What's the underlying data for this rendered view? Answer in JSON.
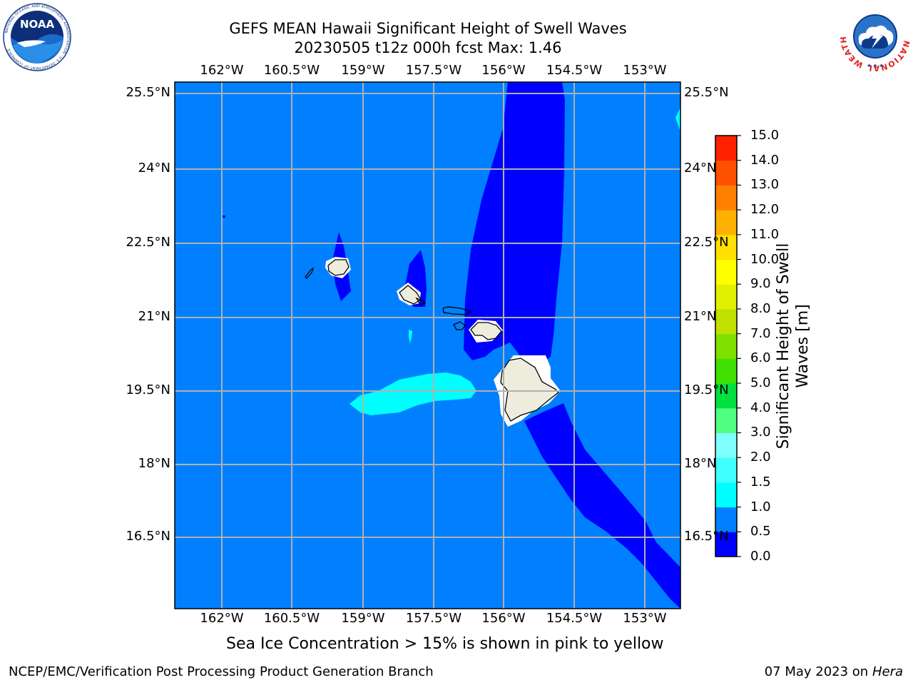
{
  "title": {
    "line1": "GEFS MEAN Hawaii Significant Height of Swell Waves",
    "line2": "20230505 t12z 000h fcst   Max: 1.46"
  },
  "map": {
    "lon_ticks": [
      "162°W",
      "160.5°W",
      "159°W",
      "157.5°W",
      "156°W",
      "154.5°W",
      "153°W"
    ],
    "lat_ticks": [
      "25.5°N",
      "24°N",
      "22.5°N",
      "21°N",
      "19.5°N",
      "18°N",
      "16.5°N"
    ],
    "field_colors": {
      "ocean": "#0080ff",
      "swell_low": "#0000ff",
      "swell_mid": "#00ffff",
      "land": "#eeecdc"
    }
  },
  "colorbar": {
    "title": "Significant Height of Swell Waves [m]",
    "title_line1": "Significant Height of Swell",
    "title_line2": "Waves [m]",
    "labels": [
      "0.0",
      "0.5",
      "1.0",
      "1.5",
      "2.0",
      "3.0",
      "4.0",
      "5.0",
      "6.0",
      "7.0",
      "8.0",
      "9.0",
      "10.0",
      "11.0",
      "12.0",
      "13.0",
      "14.0",
      "15.0"
    ],
    "colors": [
      "#0000ff",
      "#0080ff",
      "#00ffff",
      "#40ffff",
      "#80ffff",
      "#50ff80",
      "#00e040",
      "#40e000",
      "#80e000",
      "#c0e000",
      "#e0f000",
      "#ffff00",
      "#ffe000",
      "#ffb000",
      "#ff8000",
      "#ff5000",
      "#ff2000",
      "#ff0000"
    ]
  },
  "note": "Sea Ice Concentration > 15% is shown in pink to yellow",
  "footer": {
    "left": "NCEP/EMC/Verification Post Processing Product Generation Branch",
    "right_date": "07 May 2023 on",
    "right_host": "Hera"
  },
  "logos": {
    "noaa": {
      "text": "NOAA",
      "ring_text": "NATIONAL OCEANIC AND ATMOSPHERIC ADMINISTRATION · U.S. DEPARTMENT OF COMMERCE"
    },
    "nws": {
      "ring_text": "NATIONAL WEATHER SERVICE"
    }
  }
}
